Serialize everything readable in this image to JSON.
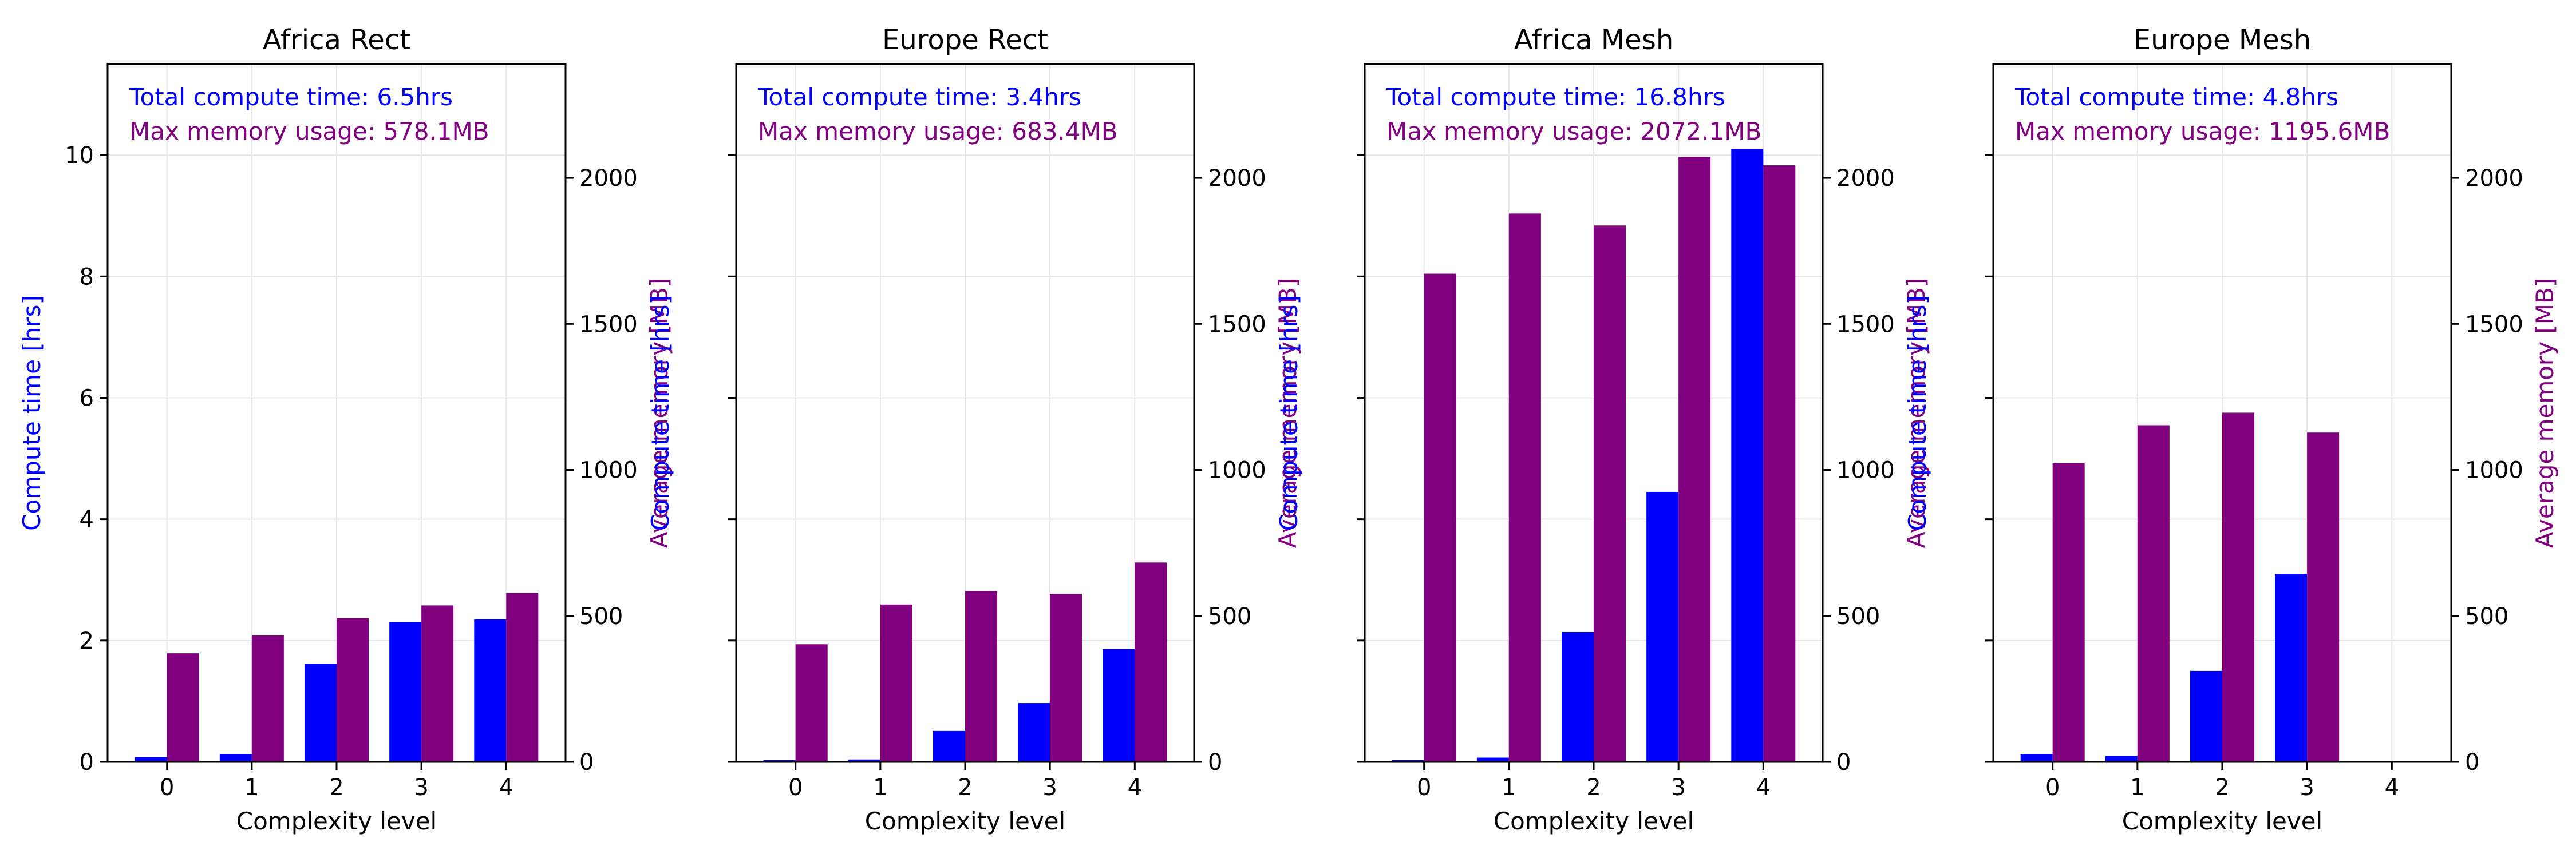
{
  "colors": {
    "time": "#0000ff",
    "memory": "#800080",
    "grid": "#e6e6e6",
    "axis": "#000000"
  },
  "chart_data": [
    {
      "type": "bar",
      "title": "Africa Rect",
      "xlabel": "Complexity level",
      "ylabel_left": "Compute time [hrs]",
      "ylabel_right": "Average memory [MB]",
      "categories": [
        "0",
        "1",
        "2",
        "3",
        "4"
      ],
      "ylim_left": [
        0,
        11.5
      ],
      "ylim_right": [
        0,
        2390
      ],
      "yticks_left": [
        "0",
        "2",
        "4",
        "6",
        "8",
        "10"
      ],
      "yticks_right": [
        "0",
        "500",
        "1000",
        "1500",
        "2000"
      ],
      "show_left_tick_labels": true,
      "grid": true,
      "annotations": [
        "Total compute time: 6.5hrs",
        "Max memory usage: 578.1MB"
      ],
      "series": [
        {
          "axis": "left",
          "values": [
            0.08,
            0.13,
            1.62,
            2.3,
            2.35
          ]
        },
        {
          "axis": "right",
          "values": [
            372,
            433,
            492,
            536,
            578
          ]
        }
      ]
    },
    {
      "type": "bar",
      "title": "Europe Rect",
      "xlabel": "Complexity level",
      "ylabel_left": "Compute time [hrs]",
      "ylabel_right": "Average memory [MB]",
      "categories": [
        "0",
        "1",
        "2",
        "3",
        "4"
      ],
      "ylim_left": [
        0,
        11.5
      ],
      "ylim_right": [
        0,
        2390
      ],
      "yticks_left": [
        "0",
        "2",
        "4",
        "6",
        "8",
        "10"
      ],
      "yticks_right": [
        "0",
        "500",
        "1000",
        "1500",
        "2000"
      ],
      "show_left_tick_labels": false,
      "grid": true,
      "annotations": [
        "Total compute time: 3.4hrs",
        "Max memory usage: 683.4MB"
      ],
      "series": [
        {
          "axis": "left",
          "values": [
            0.03,
            0.04,
            0.51,
            0.97,
            1.86
          ]
        },
        {
          "axis": "right",
          "values": [
            403,
            539,
            585,
            575,
            683
          ]
        }
      ]
    },
    {
      "type": "bar",
      "title": "Africa Mesh",
      "xlabel": "Complexity level",
      "ylabel_left": "Compute time [hrs]",
      "ylabel_right": "Average memory [MB]",
      "categories": [
        "0",
        "1",
        "2",
        "3",
        "4"
      ],
      "ylim_left": [
        0,
        11.5
      ],
      "ylim_right": [
        0,
        2390
      ],
      "yticks_left": [
        "0",
        "2",
        "4",
        "6",
        "8",
        "10"
      ],
      "yticks_right": [
        "0",
        "500",
        "1000",
        "1500",
        "2000"
      ],
      "show_left_tick_labels": false,
      "grid": true,
      "annotations": [
        "Total compute time: 16.8hrs",
        "Max memory usage: 2072.1MB"
      ],
      "series": [
        {
          "axis": "left",
          "values": [
            0.03,
            0.07,
            2.14,
            4.45,
            10.1
          ]
        },
        {
          "axis": "right",
          "values": [
            1672,
            1878,
            1837,
            2072,
            2043
          ]
        }
      ]
    },
    {
      "type": "bar",
      "title": "Europe Mesh",
      "xlabel": "Complexity level",
      "ylabel_left": "Compute time [hrs]",
      "ylabel_right": "Average memory [MB]",
      "categories": [
        "0",
        "1",
        "2",
        "3",
        "4"
      ],
      "ylim_left": [
        0,
        11.5
      ],
      "ylim_right": [
        0,
        2390
      ],
      "yticks_left": [
        "0",
        "2",
        "4",
        "6",
        "8",
        "10"
      ],
      "yticks_right": [
        "0",
        "500",
        "1000",
        "1500",
        "2000"
      ],
      "show_left_tick_labels": false,
      "grid": true,
      "annotations": [
        "Total compute time: 4.8hrs",
        "Max memory usage: 1195.6MB"
      ],
      "series": [
        {
          "axis": "left",
          "values": [
            0.13,
            0.1,
            1.5,
            3.1,
            0
          ]
        },
        {
          "axis": "right",
          "values": [
            1023,
            1153,
            1196,
            1128,
            0
          ]
        }
      ]
    }
  ]
}
